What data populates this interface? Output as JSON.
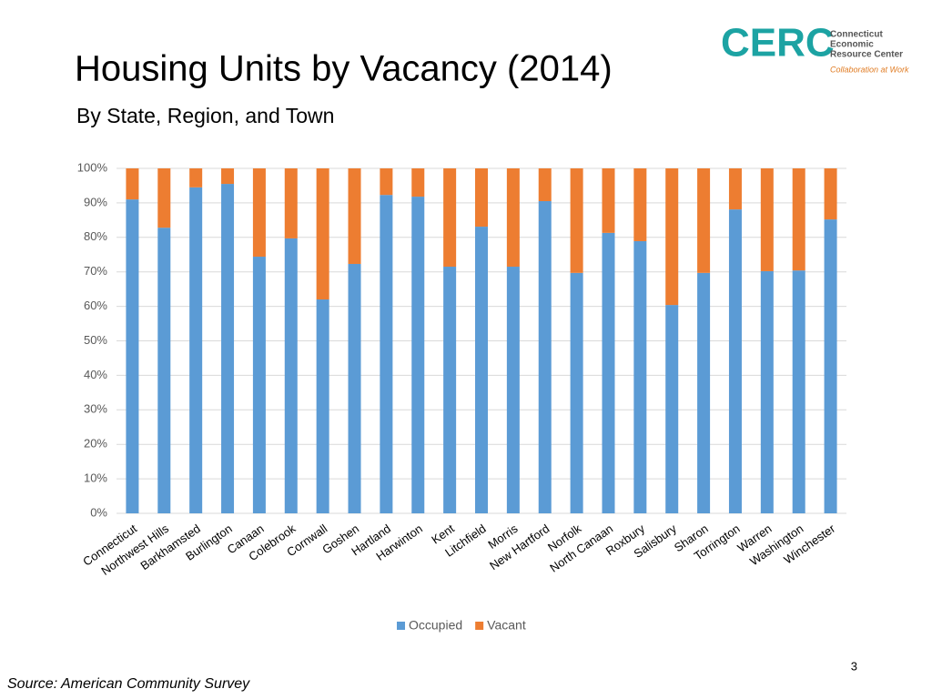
{
  "header": {
    "title": "Housing Units by Vacancy (2014)",
    "subtitle": "By State, Region, and Town"
  },
  "logo": {
    "mark": "CERC",
    "lines": [
      "Connecticut",
      "Economic",
      "Resource Center"
    ],
    "tagline": "Collaboration at Work"
  },
  "chart_data": {
    "type": "stacked_bar",
    "categories": [
      "Connecticut",
      "Northwest Hills",
      "Barkhamsted",
      "Burlington",
      "Canaan",
      "Colebrook",
      "Cornwall",
      "Goshen",
      "Hartland",
      "Harwinton",
      "Kent",
      "Litchfield",
      "Morris",
      "New Hartford",
      "Norfolk",
      "North Canaan",
      "Roxbury",
      "Salisbury",
      "Sharon",
      "Torrington",
      "Warren",
      "Washington",
      "Winchester"
    ],
    "series": [
      {
        "name": "Occupied",
        "color": "#5b9bd5",
        "values": [
          91.0,
          82.8,
          94.5,
          95.5,
          74.4,
          79.7,
          62.0,
          72.3,
          92.3,
          91.8,
          71.5,
          83.1,
          71.5,
          90.5,
          69.7,
          81.3,
          78.9,
          60.4,
          69.7,
          88.1,
          70.2,
          70.4,
          85.2
        ]
      },
      {
        "name": "Vacant",
        "color": "#ed7d31",
        "values": [
          9.0,
          17.2,
          5.5,
          4.5,
          25.6,
          20.3,
          38.0,
          27.7,
          7.7,
          8.2,
          28.5,
          16.9,
          28.5,
          9.5,
          30.3,
          18.7,
          21.1,
          39.6,
          30.3,
          11.9,
          29.8,
          29.6,
          14.8
        ]
      }
    ],
    "ylim": [
      0,
      100
    ],
    "yticks": [
      {
        "value": 0,
        "label": "0%"
      },
      {
        "value": 10,
        "label": "10%"
      },
      {
        "value": 20,
        "label": "20%"
      },
      {
        "value": 30,
        "label": "30%"
      },
      {
        "value": 40,
        "label": "40%"
      },
      {
        "value": 50,
        "label": "50%"
      },
      {
        "value": 60,
        "label": "60%"
      },
      {
        "value": 70,
        "label": "70%"
      },
      {
        "value": 80,
        "label": "80%"
      },
      {
        "value": 90,
        "label": "90%"
      },
      {
        "value": 100,
        "label": "100%"
      }
    ],
    "grid": true,
    "legend": "bottom"
  },
  "footer": {
    "page": "3",
    "source": "Source: American Community Survey"
  }
}
